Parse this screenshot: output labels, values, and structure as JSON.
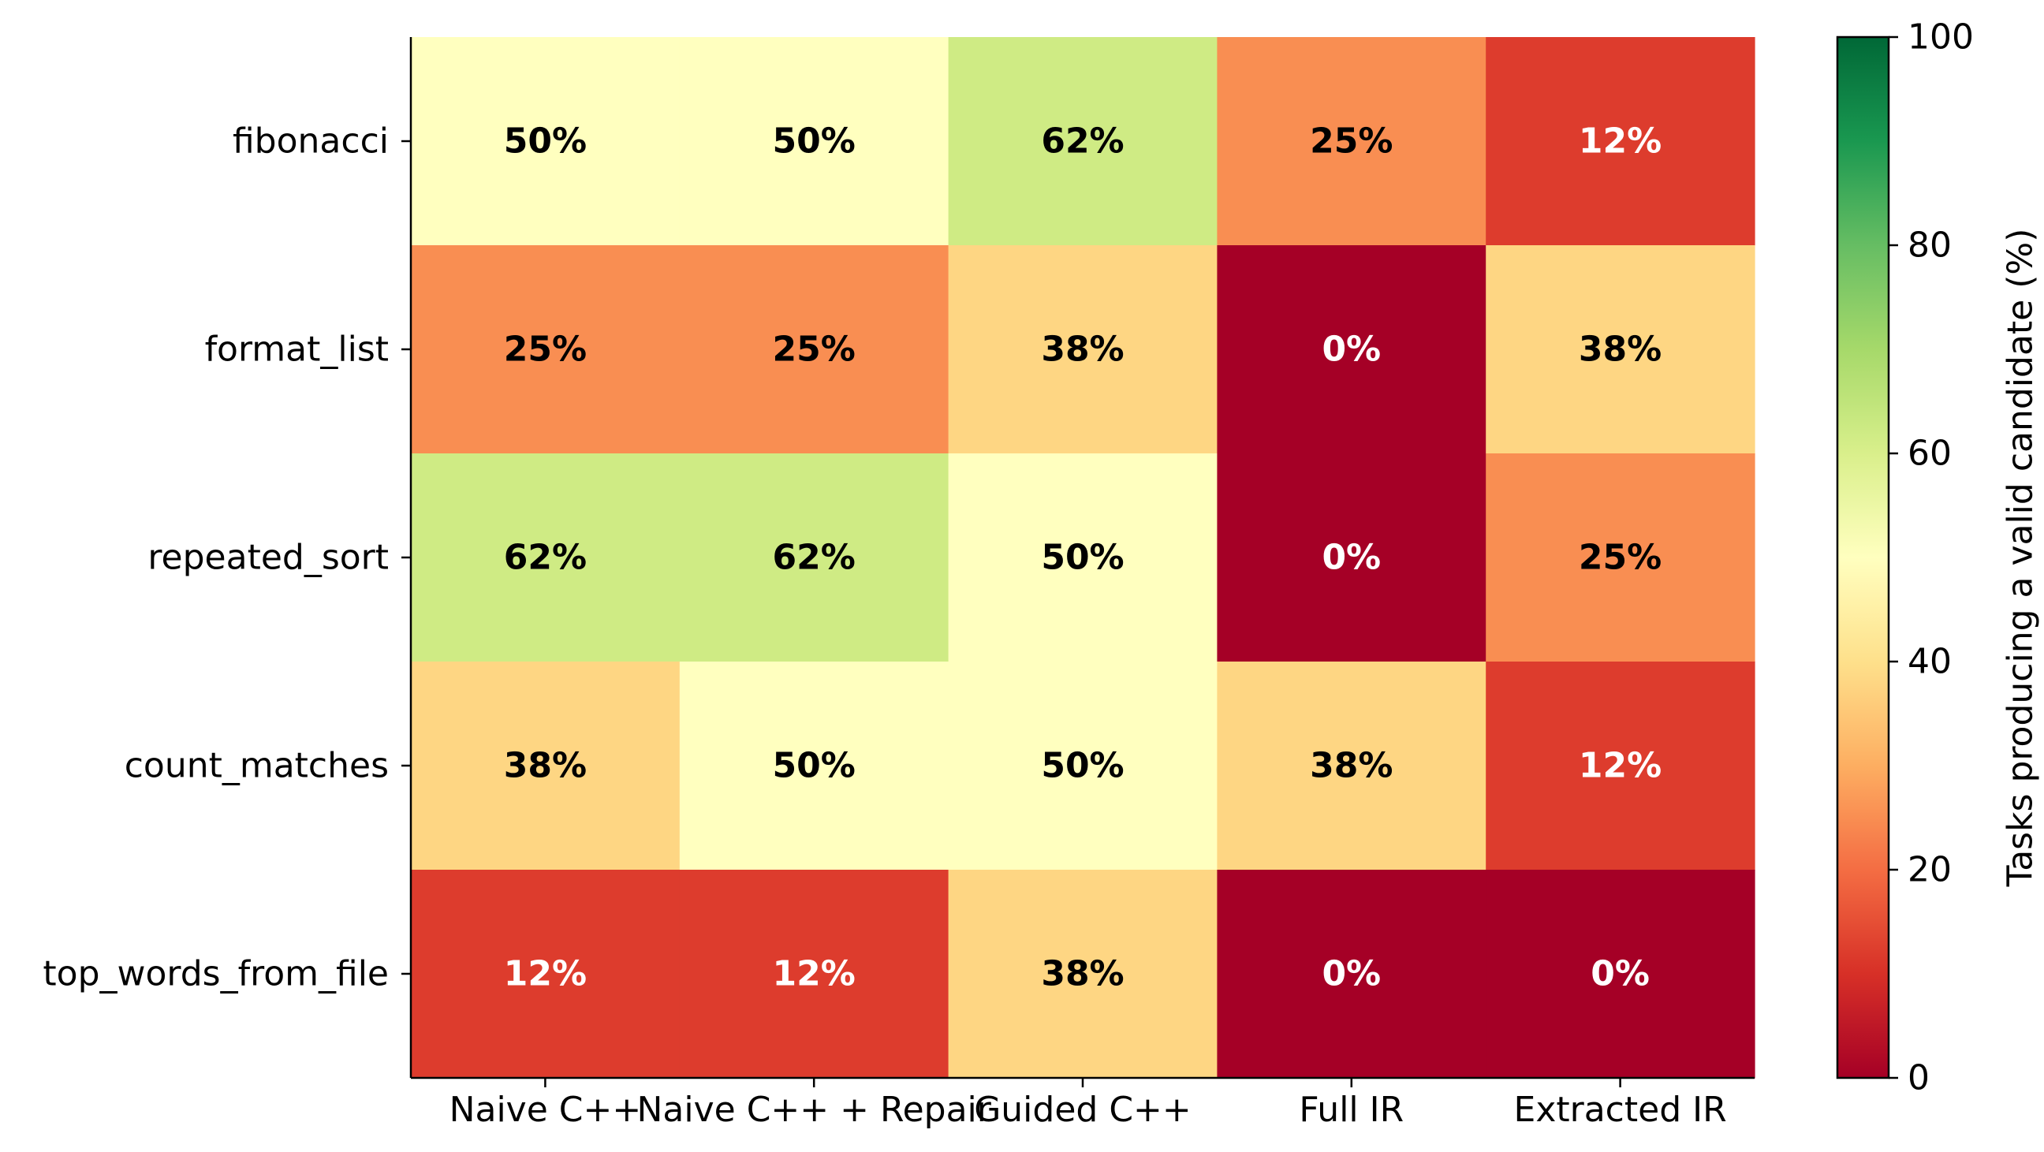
{
  "chart_data": {
    "type": "heatmap",
    "rows": [
      "fibonacci",
      "format_list",
      "repeated_sort",
      "count_matches",
      "top_words_from_file"
    ],
    "columns": [
      "Naive C++",
      "Naive C++ + Repair",
      "Guided C++",
      "Full IR",
      "Extracted IR"
    ],
    "values": [
      [
        50,
        50,
        62,
        25,
        12
      ],
      [
        25,
        25,
        38,
        0,
        38
      ],
      [
        62,
        62,
        50,
        0,
        25
      ],
      [
        38,
        50,
        50,
        38,
        12
      ],
      [
        12,
        12,
        38,
        0,
        0
      ]
    ],
    "cell_labels": [
      [
        "50%",
        "50%",
        "62%",
        "25%",
        "12%"
      ],
      [
        "25%",
        "25%",
        "38%",
        "0%",
        "38%"
      ],
      [
        "62%",
        "62%",
        "50%",
        "0%",
        "25%"
      ],
      [
        "38%",
        "50%",
        "50%",
        "38%",
        "12%"
      ],
      [
        "12%",
        "12%",
        "38%",
        "0%",
        "0%"
      ]
    ],
    "colormap": "RdYlGn",
    "vmin": 0,
    "vmax": 100,
    "colorbar": {
      "label": "Tasks producing a valid candidate (%)",
      "ticks": [
        0,
        20,
        40,
        60,
        80,
        100
      ],
      "tick_labels": [
        "0",
        "20",
        "40",
        "60",
        "80",
        "100"
      ]
    },
    "title": "",
    "xlabel": "",
    "ylabel": ""
  }
}
